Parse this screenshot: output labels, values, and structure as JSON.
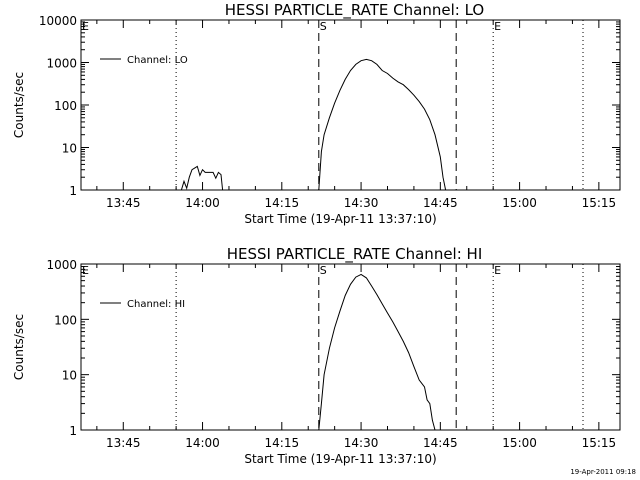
{
  "footer": {
    "timestamp": "19-Apr-2011 09:18"
  },
  "chart_data": [
    {
      "type": "line",
      "title": "HESSI PARTICLE_RATE Channel: LO",
      "xlabel": "Start Time (19-Apr-11 13:37:10)",
      "ylabel": "Counts/sec",
      "yscale": "log",
      "ylim": [
        1,
        10000
      ],
      "xlim": [
        "13:37",
        "15:19"
      ],
      "x_ticks": [
        "13:45",
        "14:00",
        "14:15",
        "14:30",
        "14:45",
        "15:00",
        "15:15"
      ],
      "y_ticks": [
        "1",
        "10",
        "100",
        "1000",
        "10000"
      ],
      "legend": {
        "position": "top-left",
        "entries": [
          "Channel: LO"
        ]
      },
      "markers": [
        {
          "label": "E",
          "time": "13:37",
          "style": "dotted"
        },
        {
          "label": "",
          "time": "13:55",
          "style": "dotted"
        },
        {
          "label": "S",
          "time": "14:22",
          "style": "dashed"
        },
        {
          "label": "",
          "time": "14:48",
          "style": "dashed"
        },
        {
          "label": "E",
          "time": "14:55",
          "style": "dotted"
        },
        {
          "label": "",
          "time": "15:12",
          "style": "dotted"
        }
      ],
      "series": [
        {
          "name": "Channel: LO",
          "segments": [
            [
              [
                "13:56",
                1
              ],
              [
                "13:56.5",
                1.6
              ],
              [
                "13:57",
                1.1
              ],
              [
                "13:57.5",
                2
              ],
              [
                "13:58",
                3
              ],
              [
                "13:59",
                3.6
              ],
              [
                "13:59.5",
                2.2
              ],
              [
                "14:00",
                3.0
              ],
              [
                "14:00.5",
                2.6
              ],
              [
                "14:02",
                2.6
              ],
              [
                "14:02.5",
                1.9
              ],
              [
                "14:03",
                2.6
              ],
              [
                "14:03.5",
                2.3
              ],
              [
                "14:03.8",
                1
              ]
            ],
            [
              [
                "14:22",
                1
              ],
              [
                "14:22.5",
                8
              ],
              [
                "14:23",
                20
              ],
              [
                "14:24",
                50
              ],
              [
                "14:25",
                110
              ],
              [
                "14:26",
                220
              ],
              [
                "14:27",
                400
              ],
              [
                "14:28",
                650
              ],
              [
                "14:29",
                900
              ],
              [
                "14:30",
                1100
              ],
              [
                "14:31",
                1180
              ],
              [
                "14:32",
                1100
              ],
              [
                "14:33",
                900
              ],
              [
                "14:34",
                650
              ],
              [
                "14:35",
                550
              ],
              [
                "14:36",
                430
              ],
              [
                "14:37",
                350
              ],
              [
                "14:38",
                300
              ],
              [
                "14:39",
                230
              ],
              [
                "14:40",
                170
              ],
              [
                "14:41",
                120
              ],
              [
                "14:42",
                80
              ],
              [
                "14:43",
                45
              ],
              [
                "14:44",
                20
              ],
              [
                "14:45",
                6
              ],
              [
                "14:45.5",
                2
              ],
              [
                "14:46",
                1
              ]
            ]
          ]
        }
      ]
    },
    {
      "type": "line",
      "title": "HESSI PARTICLE_RATE Channel: HI",
      "xlabel": "Start Time (19-Apr-11 13:37:10)",
      "ylabel": "Counts/sec",
      "yscale": "log",
      "ylim": [
        1,
        1000
      ],
      "xlim": [
        "13:37",
        "15:19"
      ],
      "x_ticks": [
        "13:45",
        "14:00",
        "14:15",
        "14:30",
        "14:45",
        "15:00",
        "15:15"
      ],
      "y_ticks": [
        "1",
        "10",
        "100",
        "1000"
      ],
      "legend": {
        "position": "top-left",
        "entries": [
          "Channel: HI"
        ]
      },
      "markers": [
        {
          "label": "E",
          "time": "13:37",
          "style": "dotted"
        },
        {
          "label": "",
          "time": "13:55",
          "style": "dotted"
        },
        {
          "label": "S",
          "time": "14:22",
          "style": "dashed"
        },
        {
          "label": "",
          "time": "14:48",
          "style": "dashed"
        },
        {
          "label": "E",
          "time": "14:55",
          "style": "dotted"
        },
        {
          "label": "",
          "time": "15:12",
          "style": "dotted"
        }
      ],
      "series": [
        {
          "name": "Channel: HI",
          "segments": [
            [
              [
                "14:22",
                1
              ],
              [
                "14:22.5",
                3
              ],
              [
                "14:23",
                10
              ],
              [
                "14:24",
                30
              ],
              [
                "14:25",
                70
              ],
              [
                "14:26",
                140
              ],
              [
                "14:27",
                270
              ],
              [
                "14:28",
                430
              ],
              [
                "14:29",
                580
              ],
              [
                "14:30",
                650
              ],
              [
                "14:31",
                560
              ],
              [
                "14:32",
                400
              ],
              [
                "14:33",
                280
              ],
              [
                "14:34",
                190
              ],
              [
                "14:35",
                130
              ],
              [
                "14:36",
                90
              ],
              [
                "14:37",
                60
              ],
              [
                "14:38",
                40
              ],
              [
                "14:39",
                25
              ],
              [
                "14:40",
                14
              ],
              [
                "14:41",
                8
              ],
              [
                "14:42",
                6
              ],
              [
                "14:42.5",
                3.5
              ],
              [
                "14:43",
                3
              ],
              [
                "14:43.5",
                1.5
              ],
              [
                "14:44",
                1
              ]
            ]
          ]
        }
      ]
    }
  ]
}
